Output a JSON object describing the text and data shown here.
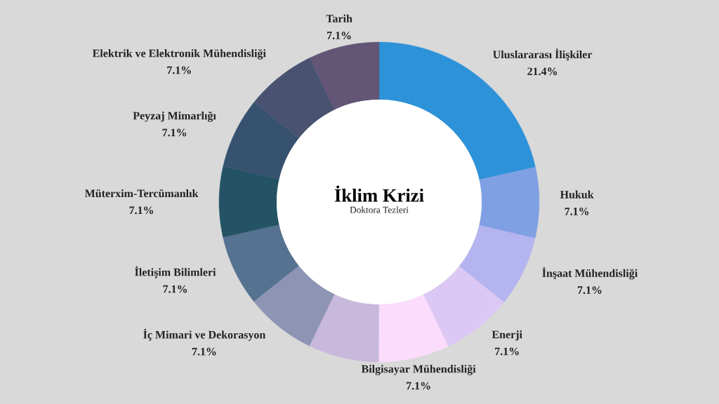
{
  "chart_data": {
    "type": "donut",
    "title": "İklim Krizi",
    "subtitle": "Doktora Tezleri",
    "categories": [
      "Uluslararası İlişkiler",
      "Hukuk",
      "İnşaat Mühendisliği",
      "Enerji",
      "Bilgisayar Mühendisliği",
      null,
      "İç Mimari ve Dekorasyon",
      "İletişim Bilimleri",
      "Müterxim-Tercümanlık",
      "Peyzaj Mimarlığı",
      "Elektrik ve Elektronik Mühendisliği",
      "Tarih"
    ],
    "values": [
      21.4,
      7.1,
      7.1,
      7.1,
      7.1,
      7.1,
      7.1,
      7.1,
      7.1,
      7.1,
      7.1,
      7.1
    ],
    "value_labels": [
      "21.4%",
      "7.1%",
      "7.1%",
      "7.1%",
      "7.1%",
      null,
      "7.1%",
      "7.1%",
      "7.1%",
      "7.1%",
      "7.1%",
      "7.1%"
    ],
    "colors": [
      "#2e92d8",
      "#80a0e4",
      "#b4b4f0",
      "#dcc8f4",
      "#fcdcfc",
      "#c8b8dc",
      "#8e94b4",
      "#557290",
      "#235365",
      "#37526f",
      "#4a5272",
      "#625575"
    ]
  }
}
